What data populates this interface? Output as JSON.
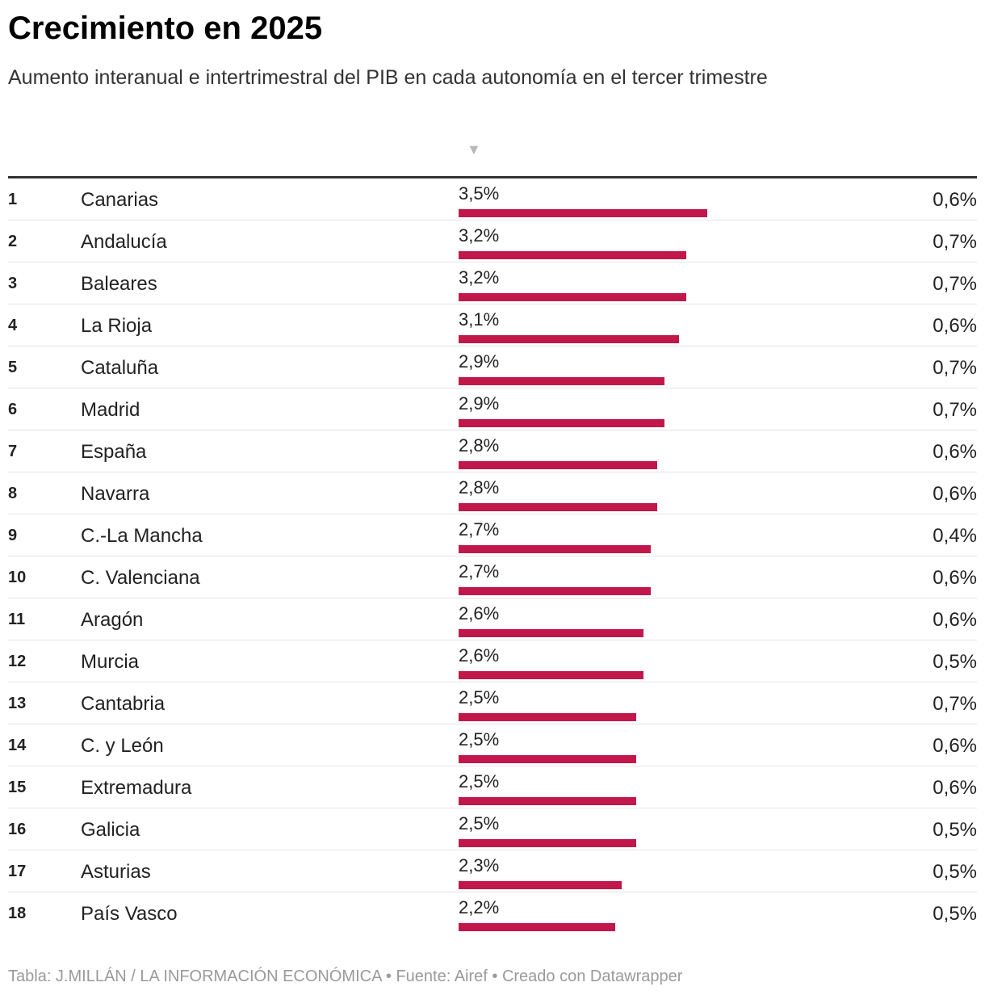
{
  "title": "Crecimiento en 2025",
  "subtitle": "Aumento interanual e intertrimestral del PIB en cada autonomía en el tercer trimestre",
  "footer": "Tabla: J.MILLÁN / LA INFORMACIÓN ECONÓMICA • Fuente: Airef • Creado con Datawrapper",
  "sort_icon": "sort-descending-icon",
  "colors": {
    "bar": "#c2174a"
  },
  "chart_data": {
    "type": "table",
    "bar_max": 3.5,
    "rows": [
      {
        "rank": "1",
        "region": "Canarias",
        "yoy": 3.5,
        "yoy_label": "3,5%",
        "qoq_label": "0,6%"
      },
      {
        "rank": "2",
        "region": "Andalucía",
        "yoy": 3.2,
        "yoy_label": "3,2%",
        "qoq_label": "0,7%"
      },
      {
        "rank": "3",
        "region": "Baleares",
        "yoy": 3.2,
        "yoy_label": "3,2%",
        "qoq_label": "0,7%"
      },
      {
        "rank": "4",
        "region": "La Rioja",
        "yoy": 3.1,
        "yoy_label": "3,1%",
        "qoq_label": "0,6%"
      },
      {
        "rank": "5",
        "region": "Cataluña",
        "yoy": 2.9,
        "yoy_label": "2,9%",
        "qoq_label": "0,7%"
      },
      {
        "rank": "6",
        "region": "Madrid",
        "yoy": 2.9,
        "yoy_label": "2,9%",
        "qoq_label": "0,7%"
      },
      {
        "rank": "7",
        "region": "España",
        "yoy": 2.8,
        "yoy_label": "2,8%",
        "qoq_label": "0,6%"
      },
      {
        "rank": "8",
        "region": "Navarra",
        "yoy": 2.8,
        "yoy_label": "2,8%",
        "qoq_label": "0,6%"
      },
      {
        "rank": "9",
        "region": "C.-La Mancha",
        "yoy": 2.7,
        "yoy_label": "2,7%",
        "qoq_label": "0,4%"
      },
      {
        "rank": "10",
        "region": "C. Valenciana",
        "yoy": 2.7,
        "yoy_label": "2,7%",
        "qoq_label": "0,6%"
      },
      {
        "rank": "11",
        "region": "Aragón",
        "yoy": 2.6,
        "yoy_label": "2,6%",
        "qoq_label": "0,6%"
      },
      {
        "rank": "12",
        "region": "Murcia",
        "yoy": 2.6,
        "yoy_label": "2,6%",
        "qoq_label": "0,5%"
      },
      {
        "rank": "13",
        "region": "Cantabria",
        "yoy": 2.5,
        "yoy_label": "2,5%",
        "qoq_label": "0,7%"
      },
      {
        "rank": "14",
        "region": "C. y León",
        "yoy": 2.5,
        "yoy_label": "2,5%",
        "qoq_label": "0,6%"
      },
      {
        "rank": "15",
        "region": "Extremadura",
        "yoy": 2.5,
        "yoy_label": "2,5%",
        "qoq_label": "0,6%"
      },
      {
        "rank": "16",
        "region": "Galicia",
        "yoy": 2.5,
        "yoy_label": "2,5%",
        "qoq_label": "0,5%"
      },
      {
        "rank": "17",
        "region": "Asturias",
        "yoy": 2.3,
        "yoy_label": "2,3%",
        "qoq_label": "0,5%"
      },
      {
        "rank": "18",
        "region": "País Vasco",
        "yoy": 2.2,
        "yoy_label": "2,2%",
        "qoq_label": "0,5%"
      }
    ]
  }
}
